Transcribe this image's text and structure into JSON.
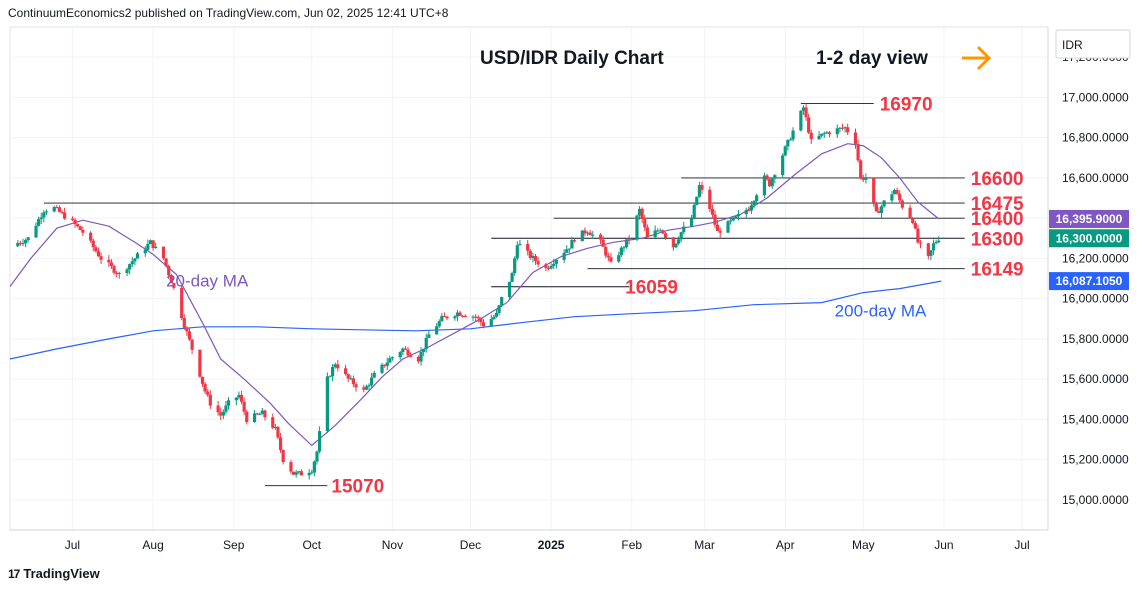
{
  "header": {
    "publisher_line": "ContinuumEconomics2 published on TradingView.com, Jun 02, 2025 12:41 UTC+8"
  },
  "footer": {
    "brand": "TradingView",
    "logo_glyph": "17"
  },
  "colors": {
    "up": "#089981",
    "down": "#f23645",
    "ma20": "#7e57c2",
    "ma200": "#2962ff",
    "level_text": "#f23645",
    "arrow": "#ff9800"
  },
  "chart_data": {
    "type": "candlestick",
    "title": "USD/IDR Daily Chart",
    "subtitle": "1-2 day view",
    "view_arrow_icon": "arrow-right-icon",
    "currency_label": "IDR",
    "ylim": [
      14850,
      17350
    ],
    "y_ticks": [
      {
        "value": 15000,
        "label": "15,000.0000"
      },
      {
        "value": 15200,
        "label": "15,200.0000"
      },
      {
        "value": 15400,
        "label": "15,400.0000"
      },
      {
        "value": 15600,
        "label": "15,600.0000"
      },
      {
        "value": 15800,
        "label": "15,800.0000"
      },
      {
        "value": 16000,
        "label": "16,000.0000"
      },
      {
        "value": 16200,
        "label": "16,200.0000"
      },
      {
        "value": 16400,
        "label": "16,400.0000"
      },
      {
        "value": 16600,
        "label": "16,600.0000"
      },
      {
        "value": 16800,
        "label": "16,800.0000"
      },
      {
        "value": 17000,
        "label": "17,000.0000"
      },
      {
        "value": 17200,
        "label": "17,200.0000"
      }
    ],
    "x_ticks": [
      {
        "date": "2024-07-01",
        "label": "Jul",
        "bold": false
      },
      {
        "date": "2024-08-01",
        "label": "Aug",
        "bold": false
      },
      {
        "date": "2024-09-01",
        "label": "Sep",
        "bold": false
      },
      {
        "date": "2024-10-01",
        "label": "Oct",
        "bold": false
      },
      {
        "date": "2024-11-01",
        "label": "Nov",
        "bold": false
      },
      {
        "date": "2024-12-01",
        "label": "Dec",
        "bold": false
      },
      {
        "date": "2025-01-01",
        "label": "2025",
        "bold": true
      },
      {
        "date": "2025-02-01",
        "label": "Feb",
        "bold": false
      },
      {
        "date": "2025-03-01",
        "label": "Mar",
        "bold": false
      },
      {
        "date": "2025-04-01",
        "label": "Apr",
        "bold": false
      },
      {
        "date": "2025-05-01",
        "label": "May",
        "bold": false
      },
      {
        "date": "2025-06-01",
        "label": "Jun",
        "bold": false
      },
      {
        "date": "2025-07-01",
        "label": "Jul",
        "bold": false
      }
    ],
    "x_range": [
      "2024-06-07",
      "2025-07-11"
    ],
    "price_tags": [
      {
        "value": 16395.9,
        "label": "16,395.9000",
        "color": "#7e57c2"
      },
      {
        "value": 16300,
        "label": "16,300.0000",
        "color": "#089981"
      },
      {
        "value": 16087.105,
        "label": "16,087.1050",
        "color": "#2962ff"
      }
    ],
    "levels": [
      {
        "value": 16970,
        "label": "16970",
        "from": "2025-04-07",
        "to": "2025-05-05"
      },
      {
        "value": 16600,
        "label": "16600",
        "from": "2025-02-20",
        "to": "2025-06-09"
      },
      {
        "value": 16475,
        "label": "16475",
        "from": "2024-06-20",
        "to": "2025-06-09"
      },
      {
        "value": 16400,
        "label": "16400",
        "from": "2025-01-02",
        "to": "2025-06-09"
      },
      {
        "value": 16300,
        "label": "16300",
        "from": "2024-12-09",
        "to": "2025-06-09"
      },
      {
        "value": 16149,
        "label": "16149",
        "from": "2025-01-15",
        "to": "2025-06-09"
      },
      {
        "value": 16059,
        "label": "16059",
        "from": "2024-12-09",
        "to": "2025-01-31"
      },
      {
        "value": 15070,
        "label": "15070",
        "from": "2024-09-13",
        "to": "2024-10-07"
      }
    ],
    "annotations": [
      {
        "text": "20-day MA",
        "date": "2024-08-06",
        "value": 16060,
        "color": "#7e57c2"
      },
      {
        "text": "200-day MA",
        "date": "2025-04-20",
        "value": 15910,
        "color": "#2962ff"
      }
    ],
    "ma20": [
      [
        "2024-06-07",
        16060
      ],
      [
        "2024-06-15",
        16200
      ],
      [
        "2024-06-25",
        16350
      ],
      [
        "2024-07-05",
        16390
      ],
      [
        "2024-07-15",
        16360
      ],
      [
        "2024-07-25",
        16280
      ],
      [
        "2024-08-01",
        16220
      ],
      [
        "2024-08-10",
        16120
      ],
      [
        "2024-08-20",
        15880
      ],
      [
        "2024-08-27",
        15700
      ],
      [
        "2024-09-05",
        15600
      ],
      [
        "2024-09-15",
        15480
      ],
      [
        "2024-09-22",
        15380
      ],
      [
        "2024-10-01",
        15270
      ],
      [
        "2024-10-10",
        15370
      ],
      [
        "2024-10-20",
        15500
      ],
      [
        "2024-10-28",
        15610
      ],
      [
        "2024-11-05",
        15700
      ],
      [
        "2024-11-15",
        15760
      ],
      [
        "2024-11-25",
        15830
      ],
      [
        "2024-12-05",
        15900
      ],
      [
        "2024-12-15",
        15980
      ],
      [
        "2024-12-25",
        16130
      ],
      [
        "2025-01-05",
        16210
      ],
      [
        "2025-01-15",
        16250
      ],
      [
        "2025-01-25",
        16280
      ],
      [
        "2025-02-05",
        16300
      ],
      [
        "2025-02-15",
        16340
      ],
      [
        "2025-02-25",
        16360
      ],
      [
        "2025-03-05",
        16380
      ],
      [
        "2025-03-15",
        16420
      ],
      [
        "2025-03-25",
        16500
      ],
      [
        "2025-04-05",
        16620
      ],
      [
        "2025-04-15",
        16720
      ],
      [
        "2025-04-25",
        16770
      ],
      [
        "2025-05-01",
        16760
      ],
      [
        "2025-05-08",
        16700
      ],
      [
        "2025-05-15",
        16600
      ],
      [
        "2025-05-22",
        16480
      ],
      [
        "2025-05-30",
        16396
      ]
    ],
    "ma200": [
      [
        "2024-06-07",
        15700
      ],
      [
        "2024-06-25",
        15750
      ],
      [
        "2024-07-15",
        15800
      ],
      [
        "2024-08-01",
        15840
      ],
      [
        "2024-08-20",
        15860
      ],
      [
        "2024-09-10",
        15860
      ],
      [
        "2024-10-01",
        15850
      ],
      [
        "2024-10-20",
        15845
      ],
      [
        "2024-11-10",
        15840
      ],
      [
        "2024-12-01",
        15850
      ],
      [
        "2024-12-20",
        15880
      ],
      [
        "2025-01-10",
        15910
      ],
      [
        "2025-02-01",
        15925
      ],
      [
        "2025-02-25",
        15940
      ],
      [
        "2025-03-20",
        15970
      ],
      [
        "2025-04-15",
        15980
      ],
      [
        "2025-05-01",
        16030
      ],
      [
        "2025-05-15",
        16050
      ],
      [
        "2025-05-31",
        16087
      ]
    ],
    "series_segments": [
      [
        "2024-06-07",
        16260
      ],
      [
        "2024-06-14",
        16300
      ],
      [
        "2024-06-20",
        16440
      ],
      [
        "2024-06-24",
        16450
      ],
      [
        "2024-07-01",
        16380
      ],
      [
        "2024-07-05",
        16330
      ],
      [
        "2024-07-12",
        16200
      ],
      [
        "2024-07-19",
        16120
      ],
      [
        "2024-07-25",
        16200
      ],
      [
        "2024-07-31",
        16280
      ],
      [
        "2024-08-05",
        16200
      ],
      [
        "2024-08-09",
        16050
      ],
      [
        "2024-08-13",
        15870
      ],
      [
        "2024-08-16",
        15750
      ],
      [
        "2024-08-21",
        15540
      ],
      [
        "2024-08-23",
        15480
      ],
      [
        "2024-08-27",
        15420
      ],
      [
        "2024-08-30",
        15480
      ],
      [
        "2024-09-03",
        15520
      ],
      [
        "2024-09-06",
        15400
      ],
      [
        "2024-09-12",
        15430
      ],
      [
        "2024-09-17",
        15350
      ],
      [
        "2024-09-20",
        15200
      ],
      [
        "2024-09-24",
        15130
      ],
      [
        "2024-09-27",
        15130
      ],
      [
        "2024-10-01",
        15150
      ],
      [
        "2024-10-03",
        15240
      ],
      [
        "2024-10-07",
        15600
      ],
      [
        "2024-10-10",
        15680
      ],
      [
        "2024-10-15",
        15600
      ],
      [
        "2024-10-21",
        15540
      ],
      [
        "2024-10-25",
        15620
      ],
      [
        "2024-10-31",
        15700
      ],
      [
        "2024-11-05",
        15750
      ],
      [
        "2024-11-11",
        15700
      ],
      [
        "2024-11-15",
        15820
      ],
      [
        "2024-11-20",
        15900
      ],
      [
        "2024-11-26",
        15930
      ],
      [
        "2024-12-03",
        15910
      ],
      [
        "2024-12-06",
        15870
      ],
      [
        "2024-12-11",
        15920
      ],
      [
        "2024-12-13",
        16000
      ],
      [
        "2024-12-17",
        16120
      ],
      [
        "2024-12-19",
        16280
      ],
      [
        "2024-12-24",
        16210
      ],
      [
        "2024-12-30",
        16150
      ],
      [
        "2025-01-03",
        16200
      ],
      [
        "2025-01-08",
        16260
      ],
      [
        "2025-01-10",
        16300
      ],
      [
        "2025-01-15",
        16340
      ],
      [
        "2025-01-20",
        16280
      ],
      [
        "2025-01-24",
        16170
      ],
      [
        "2025-01-31",
        16300
      ],
      [
        "2025-02-04",
        16440
      ],
      [
        "2025-02-07",
        16300
      ],
      [
        "2025-02-12",
        16350
      ],
      [
        "2025-02-17",
        16260
      ],
      [
        "2025-02-20",
        16330
      ],
      [
        "2025-02-24",
        16400
      ],
      [
        "2025-02-27",
        16560
      ],
      [
        "2025-03-03",
        16450
      ],
      [
        "2025-03-06",
        16330
      ],
      [
        "2025-03-11",
        16380
      ],
      [
        "2025-03-14",
        16410
      ],
      [
        "2025-03-18",
        16450
      ],
      [
        "2025-03-20",
        16500
      ],
      [
        "2025-03-24",
        16600
      ],
      [
        "2025-03-26",
        16570
      ],
      [
        "2025-04-08",
        16950
      ],
      [
        "2025-04-11",
        16780
      ],
      [
        "2025-04-16",
        16820
      ],
      [
        "2025-04-21",
        16840
      ],
      [
        "2025-04-24",
        16850
      ],
      [
        "2025-04-28",
        16780
      ],
      [
        "2025-04-30",
        16600
      ],
      [
        "2025-05-02",
        16600
      ],
      [
        "2025-05-06",
        16420
      ],
      [
        "2025-05-09",
        16480
      ],
      [
        "2025-05-13",
        16540
      ],
      [
        "2025-05-16",
        16460
      ],
      [
        "2025-05-20",
        16390
      ],
      [
        "2025-05-22",
        16280
      ],
      [
        "2025-05-26",
        16200
      ],
      [
        "2025-05-28",
        16270
      ],
      [
        "2025-05-30",
        16300
      ]
    ]
  }
}
